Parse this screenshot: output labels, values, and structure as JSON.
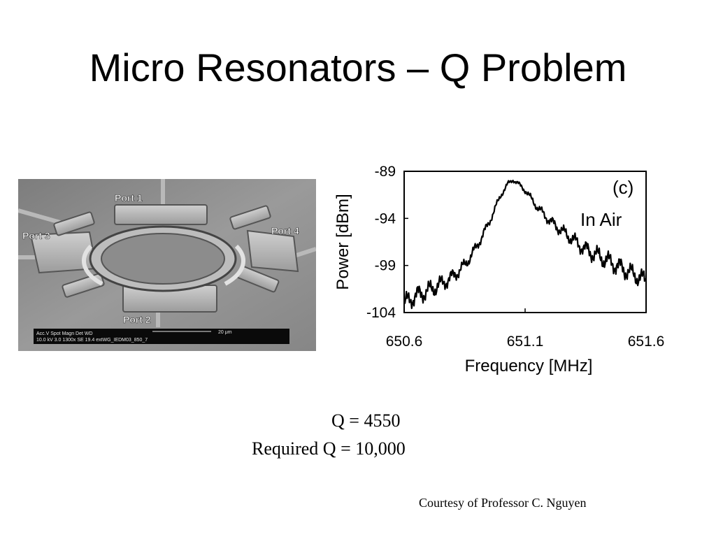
{
  "slide": {
    "title": "Micro Resonators – Q Problem",
    "q_measured": "Q = 4550",
    "q_required": "Required Q = 10,000",
    "credit": "Courtesy of Professor C. Nguyen"
  },
  "sem_image": {
    "port_labels": [
      "Port 1",
      "Port 2",
      "Port 3",
      "Port 4"
    ],
    "databar": {
      "row1": "Acc.V  Spot Magn   Det  WD",
      "row2": "10.0 kV 3.0  1300x   SE  19.4  extWG_IEDM03_850_7",
      "scale": "20 μm"
    }
  },
  "chart_data": {
    "type": "line",
    "title": "",
    "panel_label": "(c)",
    "annotation": "In Air",
    "xlabel": "Frequency [MHz]",
    "ylabel": "Power [dBm]",
    "xlim": [
      650.6,
      651.6
    ],
    "ylim": [
      -104,
      -89
    ],
    "x_ticks": [
      650.6,
      651.1,
      651.6
    ],
    "x_tick_labels": [
      "650.6",
      "651.1",
      "651.6"
    ],
    "y_ticks": [
      -89,
      -94,
      -99,
      -104
    ],
    "y_tick_labels": [
      "-89",
      "-94",
      "-99",
      "-104"
    ],
    "grid": false,
    "series": [
      {
        "x": [
          650.6,
          650.65,
          650.7,
          650.75,
          650.8,
          650.85,
          650.9,
          650.95,
          651.0,
          651.03,
          651.05,
          651.07,
          651.1,
          651.15,
          651.2,
          651.25,
          651.3,
          651.35,
          651.4,
          651.45,
          651.5,
          651.55,
          651.6
        ],
        "y": [
          -103.0,
          -102.2,
          -101.7,
          -101.0,
          -100.2,
          -99.0,
          -97.0,
          -94.5,
          -91.5,
          -90.3,
          -89.9,
          -90.3,
          -91.0,
          -92.8,
          -94.2,
          -95.3,
          -96.3,
          -97.3,
          -98.0,
          -98.6,
          -99.3,
          -100.0,
          -100.6
        ]
      }
    ]
  }
}
